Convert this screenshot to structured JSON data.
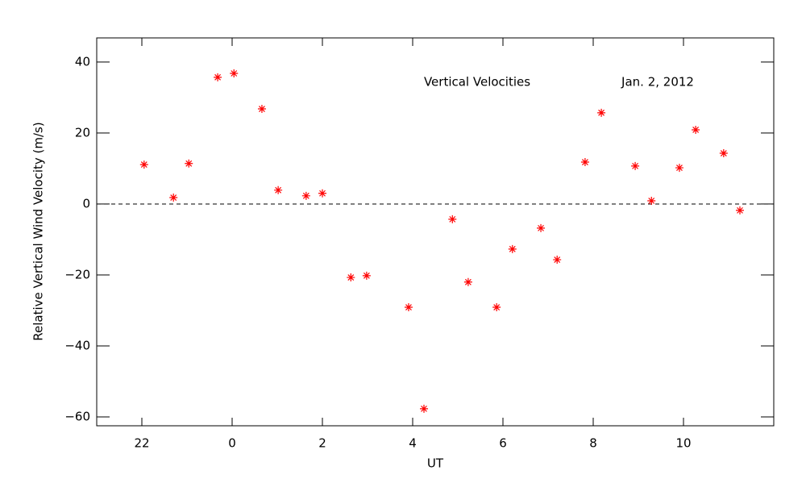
{
  "chart_data": {
    "type": "scatter",
    "xlabel": "UT",
    "ylabel": "Relative Vertical Wind Velocity (m/s)",
    "annotations": [
      "Vertical Velocities",
      "Jan. 2, 2012"
    ],
    "xlim": [
      -3,
      12
    ],
    "xticks": [
      {
        "value": -2,
        "label": "22"
      },
      0,
      2,
      4,
      6,
      8,
      10
    ],
    "ylim": [
      -62.5,
      46.8
    ],
    "yticks": [
      {
        "value": -60,
        "label": "−60"
      },
      {
        "value": -40,
        "label": "−40"
      },
      {
        "value": -20,
        "label": "−20"
      },
      0,
      20,
      40
    ],
    "hline": 0,
    "color": "#ff0000",
    "x": [
      -1.95,
      -1.3,
      -0.96,
      -0.32,
      0.04,
      0.66,
      1.02,
      1.64,
      2.0,
      2.63,
      2.98,
      3.91,
      4.25,
      4.88,
      5.23,
      5.86,
      6.21,
      6.84,
      7.2,
      7.82,
      8.18,
      8.93,
      9.29,
      9.91,
      10.27,
      10.89,
      11.25
    ],
    "values": [
      11.1,
      1.8,
      11.4,
      35.7,
      36.8,
      26.8,
      3.9,
      2.3,
      3.0,
      -20.7,
      -20.2,
      -29.1,
      -57.7,
      -4.3,
      -22.0,
      -29.1,
      -12.7,
      -6.8,
      -15.7,
      11.8,
      25.7,
      10.7,
      0.9,
      10.2,
      20.9,
      14.3,
      -1.8
    ]
  }
}
